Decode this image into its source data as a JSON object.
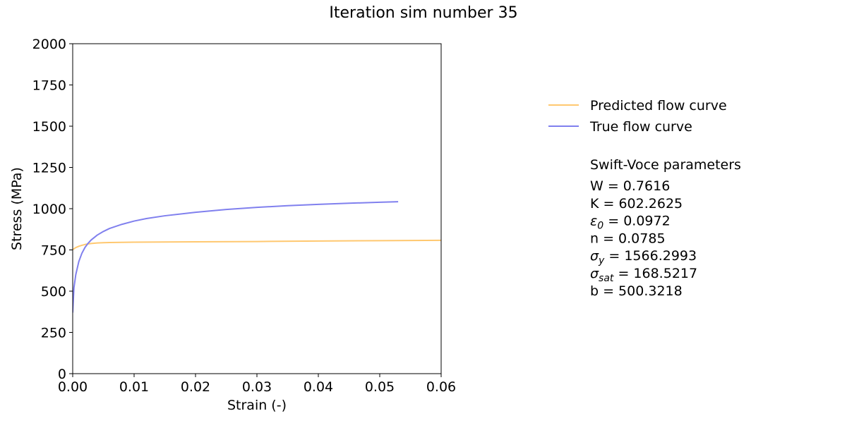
{
  "chart_data": {
    "type": "line",
    "title": "Iteration sim number 35",
    "xlabel": "Strain (-)",
    "ylabel": "Stress (MPa)",
    "xlim": [
      0.0,
      0.06
    ],
    "ylim": [
      0,
      2000
    ],
    "xticks": [
      0.0,
      0.01,
      0.02,
      0.03,
      0.04,
      0.05,
      0.06
    ],
    "xtick_labels": [
      "0.00",
      "0.01",
      "0.02",
      "0.03",
      "0.04",
      "0.05",
      "0.06"
    ],
    "yticks": [
      0,
      250,
      500,
      750,
      1000,
      1250,
      1500,
      1750,
      2000
    ],
    "ytick_labels": [
      "0",
      "250",
      "500",
      "750",
      "1000",
      "1250",
      "1500",
      "1750",
      "2000"
    ],
    "grid": false,
    "legend_position": "right, outside plot",
    "series": [
      {
        "name": "Predicted flow curve",
        "color": "#ffc870",
        "x": [
          0.0,
          0.0005,
          0.001,
          0.0015,
          0.002,
          0.003,
          0.004,
          0.005,
          0.006,
          0.008,
          0.01,
          0.015,
          0.02,
          0.03,
          0.04,
          0.05,
          0.06
        ],
        "y": [
          752,
          764,
          772,
          778,
          783,
          789,
          792,
          794,
          795,
          796,
          797,
          798,
          799,
          801,
          804,
          806,
          808
        ]
      },
      {
        "name": "True flow curve",
        "color": "#8080ee",
        "x": [
          0.0,
          0.0002,
          0.0005,
          0.001,
          0.0015,
          0.002,
          0.0025,
          0.003,
          0.004,
          0.005,
          0.006,
          0.008,
          0.01,
          0.012,
          0.015,
          0.02,
          0.025,
          0.03,
          0.035,
          0.04,
          0.045,
          0.05,
          0.053
        ],
        "y": [
          370,
          520,
          600,
          680,
          730,
          765,
          790,
          810,
          840,
          862,
          880,
          905,
          925,
          940,
          957,
          978,
          995,
          1008,
          1018,
          1026,
          1033,
          1039,
          1042
        ]
      }
    ],
    "annotation": {
      "heading": "Swift-Voce parameters",
      "params": [
        {
          "symbol": "W",
          "sub": "",
          "italic": false,
          "value": "0.7616"
        },
        {
          "symbol": "K",
          "sub": "",
          "italic": false,
          "value": "602.2625"
        },
        {
          "symbol": "ε",
          "sub": "0",
          "italic": true,
          "value": "0.0972"
        },
        {
          "symbol": "n",
          "sub": "",
          "italic": false,
          "value": "0.0785"
        },
        {
          "symbol": "σ",
          "sub": "y",
          "italic": true,
          "value": "1566.2993"
        },
        {
          "symbol": "σ",
          "sub": "sat",
          "italic": true,
          "value": "168.5217"
        },
        {
          "symbol": "b",
          "sub": "",
          "italic": false,
          "value": "500.3218"
        }
      ]
    }
  }
}
